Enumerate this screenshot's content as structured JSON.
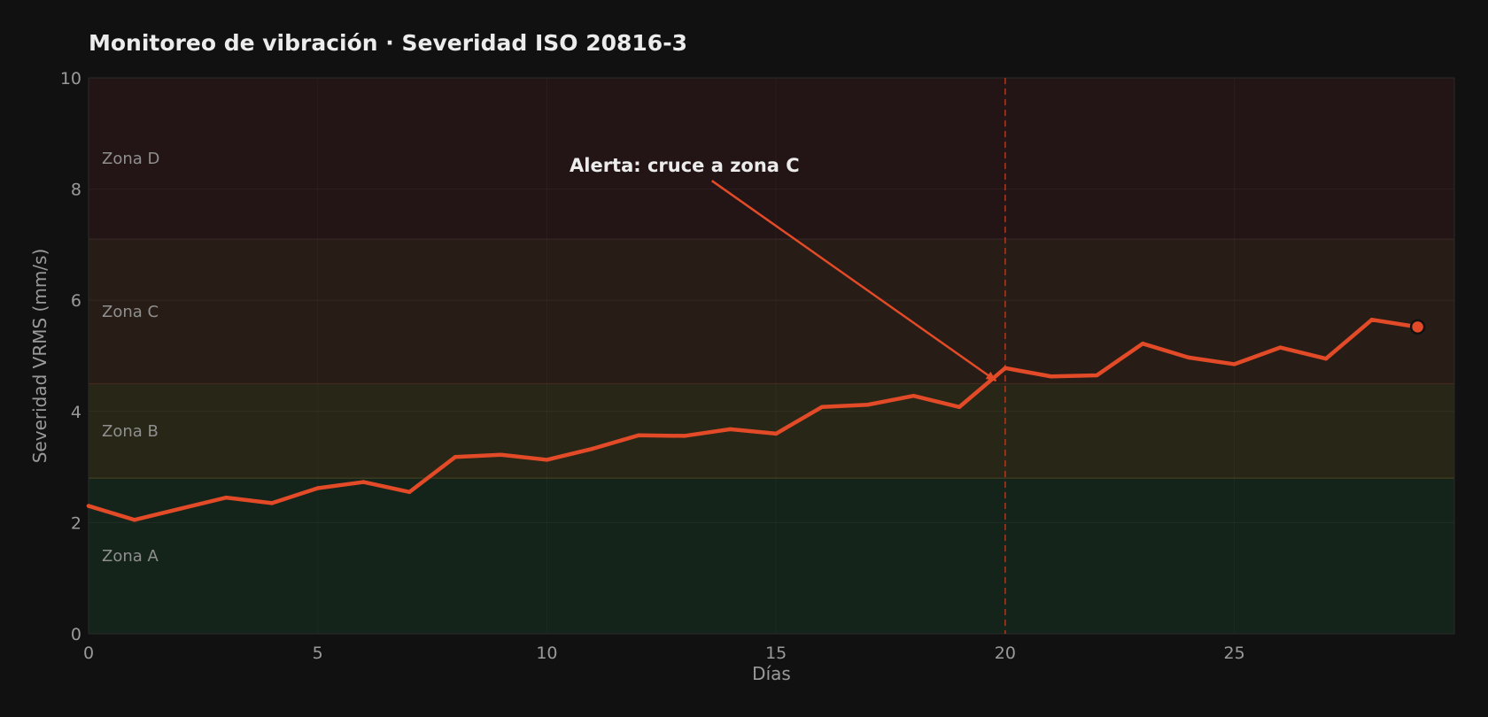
{
  "chart_data": {
    "type": "line",
    "title": "Monitoreo de vibración · Severidad ISO 20816-3",
    "xlabel": "Días",
    "ylabel": "Severidad VRMS (mm/s)",
    "xlim": [
      0,
      29.8
    ],
    "ylim": [
      0,
      10
    ],
    "xticks": [
      0,
      5,
      10,
      15,
      20,
      25
    ],
    "yticks": [
      0,
      2,
      4,
      6,
      8,
      10
    ],
    "grid": true,
    "zones": [
      {
        "label": "Zona A",
        "from": 0,
        "to": 2.8,
        "color": "#14241a"
      },
      {
        "label": "Zona B",
        "from": 2.8,
        "to": 4.5,
        "color": "#282616"
      },
      {
        "label": "Zona C",
        "from": 4.5,
        "to": 7.1,
        "color": "#271d16"
      },
      {
        "label": "Zona D",
        "from": 7.1,
        "to": 10,
        "color": "#231516"
      }
    ],
    "series": [
      {
        "color": "#e34a27",
        "x": [
          0,
          1,
          2,
          3,
          4,
          5,
          6,
          7,
          8,
          9,
          10,
          11,
          12,
          13,
          14,
          15,
          16,
          17,
          18,
          19,
          20,
          21,
          22,
          23,
          24,
          25,
          26,
          27,
          28,
          29
        ],
        "values": [
          2.3,
          2.05,
          2.25,
          2.45,
          2.35,
          2.62,
          2.73,
          2.55,
          3.18,
          3.22,
          3.13,
          3.33,
          3.57,
          3.56,
          3.68,
          3.6,
          4.08,
          4.12,
          4.28,
          4.08,
          4.78,
          4.63,
          4.65,
          5.22,
          4.97,
          4.85,
          5.15,
          4.95,
          5.65,
          5.52
        ]
      }
    ],
    "vline": {
      "x": 20,
      "color": "#c0391e",
      "style": "dashed"
    },
    "annotation": {
      "text": "Alerta: cruce a zona C",
      "xy": [
        19.8,
        4.55
      ],
      "xytext": [
        13.6,
        8.15
      ]
    },
    "last_point_marker": true
  }
}
